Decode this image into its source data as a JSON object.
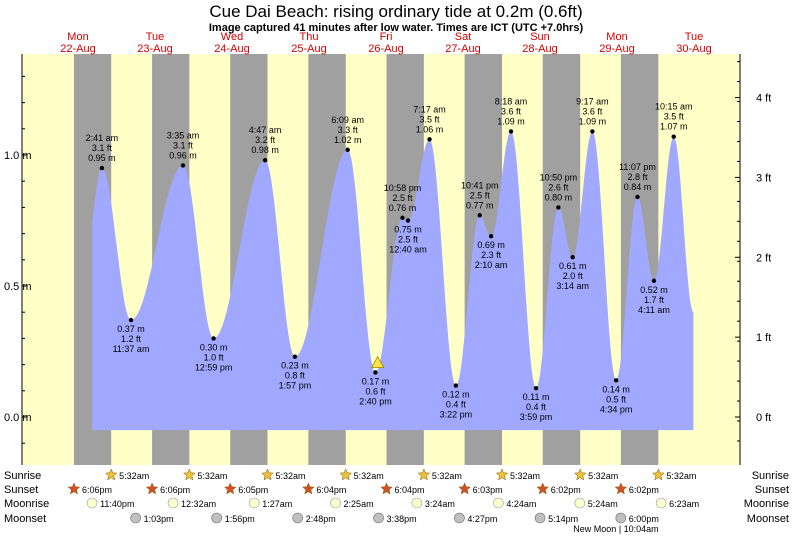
{
  "title": "Cue Dai Beach: rising  ordinary tide at 0.2m (0.6ft)",
  "subtitle": "Image captured 41 minutes after low water. Times are ICT (UTC +7.0hrs)",
  "days": [
    {
      "dow": "Mon",
      "date": "22-Aug"
    },
    {
      "dow": "Tue",
      "date": "23-Aug"
    },
    {
      "dow": "Wed",
      "date": "24-Aug"
    },
    {
      "dow": "Thu",
      "date": "25-Aug"
    },
    {
      "dow": "Fri",
      "date": "26-Aug"
    },
    {
      "dow": "Sat",
      "date": "27-Aug"
    },
    {
      "dow": "Sun",
      "date": "28-Aug"
    },
    {
      "dow": "Mon",
      "date": "29-Aug"
    },
    {
      "dow": "Tue",
      "date": "30-Aug"
    }
  ],
  "chart_data": {
    "type": "area",
    "y_unit_left": "m",
    "y_unit_right": "ft",
    "ylim_m": [
      -0.1,
      1.4
    ],
    "left_ticks": [
      "0.0 m",
      "0.5 m",
      "1.0 m"
    ],
    "left_tick_values": [
      0,
      0.5,
      1.0
    ],
    "right_ticks": [
      "0 ft",
      "1 ft",
      "2 ft",
      "3 ft",
      "4 ft"
    ],
    "right_tick_values_ft": [
      0,
      1,
      2,
      3,
      4
    ],
    "x_unit": "hours since 22-Aug 00:00 ICT",
    "tides": [
      {
        "type": "high",
        "day": "23-Aug",
        "time": "2:41 am",
        "height_m": 0.95,
        "height_ft": "3.1 ft",
        "m_label": "0.95 m",
        "t": 26.68
      },
      {
        "type": "low",
        "day": "23-Aug",
        "time": "11:37 am",
        "height_m": 0.37,
        "height_ft": "1.2 ft",
        "m_label": "0.37 m",
        "t": 35.62
      },
      {
        "type": "high",
        "day": "24-Aug",
        "time": "3:35 am",
        "height_m": 0.96,
        "height_ft": "3.1 ft",
        "m_label": "0.96 m",
        "t": 51.58
      },
      {
        "type": "low",
        "day": "24-Aug",
        "time": "12:59 pm",
        "height_m": 0.3,
        "height_ft": "1.0 ft",
        "m_label": "0.30 m",
        "t": 60.98
      },
      {
        "type": "high",
        "day": "25-Aug",
        "time": "4:47 am",
        "height_m": 0.98,
        "height_ft": "3.2 ft",
        "m_label": "0.98 m",
        "t": 76.78
      },
      {
        "type": "low",
        "day": "25-Aug",
        "time": "1:57 pm",
        "height_m": 0.23,
        "height_ft": "0.8 ft",
        "m_label": "0.23 m",
        "t": 85.95
      },
      {
        "type": "high",
        "day": "26-Aug",
        "time": "6:09 am",
        "height_m": 1.02,
        "height_ft": "3.3 ft",
        "m_label": "1.02 m",
        "t": 102.15
      },
      {
        "type": "low",
        "day": "26-Aug",
        "time": "2:40 pm",
        "height_m": 0.17,
        "height_ft": "0.6 ft",
        "m_label": "0.17 m",
        "t": 110.67
      },
      {
        "type": "high",
        "day": "26-Aug",
        "time": "10:58 pm",
        "height_m": 0.76,
        "height_ft": "2.5 ft",
        "m_label": "0.76 m",
        "t": 118.97
      },
      {
        "type": "low",
        "day": "27-Aug",
        "time": "12:40 am",
        "height_m": 0.75,
        "height_ft": "2.5 ft",
        "m_label": "0.75 m",
        "t": 120.67
      },
      {
        "type": "high",
        "day": "27-Aug",
        "time": "7:17 am",
        "height_m": 1.06,
        "height_ft": "3.5 ft",
        "m_label": "1.06 m",
        "t": 127.28
      },
      {
        "type": "low",
        "day": "27-Aug",
        "time": "3:22 pm",
        "height_m": 0.12,
        "height_ft": "0.4 ft",
        "m_label": "0.12 m",
        "t": 135.37
      },
      {
        "type": "high",
        "day": "27-Aug",
        "time": "10:41 pm",
        "height_m": 0.77,
        "height_ft": "2.5 ft",
        "m_label": "0.77 m",
        "t": 142.68
      },
      {
        "type": "low",
        "day": "28-Aug",
        "time": "2:10 am",
        "height_m": 0.69,
        "height_ft": "2.3 ft",
        "m_label": "0.69 m",
        "t": 146.17
      },
      {
        "type": "high",
        "day": "28-Aug",
        "time": "8:18 am",
        "height_m": 1.09,
        "height_ft": "3.6 ft",
        "m_label": "1.09 m",
        "t": 152.3
      },
      {
        "type": "low",
        "day": "28-Aug",
        "time": "3:59 pm",
        "height_m": 0.11,
        "height_ft": "0.4 ft",
        "m_label": "0.11 m",
        "t": 159.98
      },
      {
        "type": "high",
        "day": "28-Aug",
        "time": "10:50 pm",
        "height_m": 0.8,
        "height_ft": "2.6 ft",
        "m_label": "0.80 m",
        "t": 166.83
      },
      {
        "type": "low",
        "day": "29-Aug",
        "time": "3:14 am",
        "height_m": 0.61,
        "height_ft": "2.0 ft",
        "m_label": "0.61 m",
        "t": 171.23
      },
      {
        "type": "high",
        "day": "29-Aug",
        "time": "9:17 am",
        "height_m": 1.09,
        "height_ft": "3.6 ft",
        "m_label": "1.09 m",
        "t": 177.28
      },
      {
        "type": "low",
        "day": "29-Aug",
        "time": "4:34 pm",
        "height_m": 0.14,
        "height_ft": "0.5 ft",
        "m_label": "0.14 m",
        "t": 184.57
      },
      {
        "type": "high",
        "day": "29-Aug",
        "time": "11:07 pm",
        "height_m": 0.84,
        "height_ft": "2.8 ft",
        "m_label": "0.84 m",
        "t": 191.12
      },
      {
        "type": "low",
        "day": "30-Aug",
        "time": "4:11 am",
        "height_m": 0.52,
        "height_ft": "1.7 ft",
        "m_label": "0.52 m",
        "t": 196.18
      },
      {
        "type": "high",
        "day": "30-Aug",
        "time": "10:15 am",
        "height_m": 1.07,
        "height_ft": "3.5 ft",
        "m_label": "1.07 m",
        "t": 202.25
      }
    ],
    "current": {
      "t": 111.35,
      "height_m": 0.2
    }
  },
  "rows": {
    "sunrise": {
      "label": "Sunrise",
      "events": [
        {
          "t": 29.53,
          "text": "5:32am"
        },
        {
          "t": 53.53,
          "text": "5:32am"
        },
        {
          "t": 77.53,
          "text": "5:32am"
        },
        {
          "t": 101.53,
          "text": "5:32am"
        },
        {
          "t": 125.53,
          "text": "5:32am"
        },
        {
          "t": 149.53,
          "text": "5:32am"
        },
        {
          "t": 173.53,
          "text": "5:32am"
        },
        {
          "t": 197.53,
          "text": "5:32am"
        }
      ]
    },
    "sunset": {
      "label": "Sunset",
      "events": [
        {
          "t": 18.1,
          "text": "6:06pm"
        },
        {
          "t": 42.1,
          "text": "6:06pm"
        },
        {
          "t": 66.08,
          "text": "6:05pm"
        },
        {
          "t": 90.07,
          "text": "6:04pm"
        },
        {
          "t": 114.07,
          "text": "6:04pm"
        },
        {
          "t": 138.05,
          "text": "6:03pm"
        },
        {
          "t": 162.03,
          "text": "6:02pm"
        },
        {
          "t": 186.03,
          "text": "6:02pm"
        }
      ]
    },
    "moonrise": {
      "label": "Moonrise",
      "events": [
        {
          "t": 23.67,
          "text": "11:40pm"
        },
        {
          "t": 48.53,
          "text": "12:32am"
        },
        {
          "t": 73.45,
          "text": "1:27am"
        },
        {
          "t": 98.42,
          "text": "2:25am"
        },
        {
          "t": 123.4,
          "text": "3:24am"
        },
        {
          "t": 148.4,
          "text": "4:24am"
        },
        {
          "t": 173.4,
          "text": "5:24am"
        },
        {
          "t": 198.38,
          "text": "6:23am"
        }
      ]
    },
    "moonset": {
      "label": "Moonset",
      "events": [
        {
          "t": 37.05,
          "text": "1:03pm"
        },
        {
          "t": 61.93,
          "text": "1:56pm"
        },
        {
          "t": 86.8,
          "text": "2:48pm"
        },
        {
          "t": 111.63,
          "text": "3:38pm"
        },
        {
          "t": 136.45,
          "text": "4:27pm"
        },
        {
          "t": 161.23,
          "text": "5:14pm"
        },
        {
          "t": 186.0,
          "text": "6:00pm"
        }
      ]
    }
  },
  "new_moon": "New Moon | 10:04am",
  "colors": {
    "day_bg": "#ffffc8",
    "night_bg": "#a0a0a0",
    "tide_fill": "#a0a8ff",
    "day_label": "#d40000",
    "sunrise_star": "#e8c23a",
    "sunset_star": "#d0502a",
    "moonrise": "#ffffd0",
    "moonset": "#c0c0c0"
  }
}
